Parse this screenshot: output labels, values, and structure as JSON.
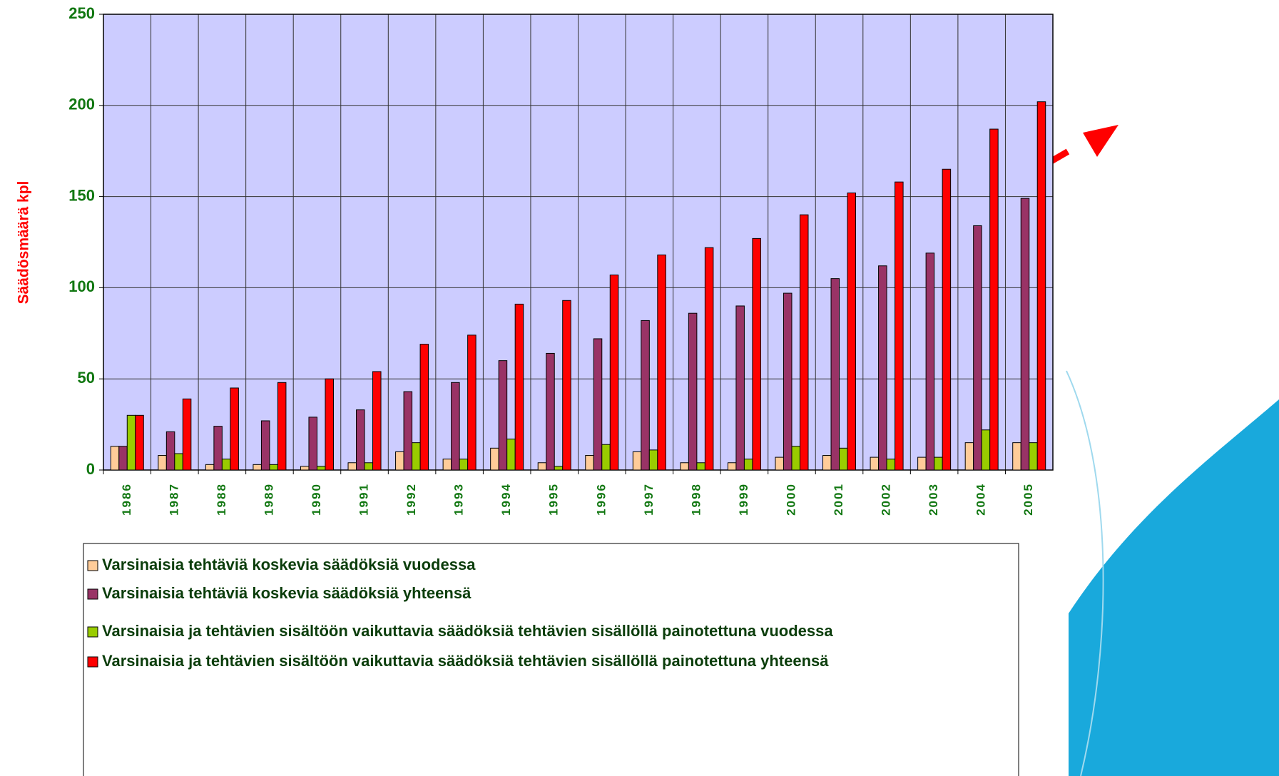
{
  "chart_data": {
    "type": "bar",
    "y_label": "Säädösmäärä kpl",
    "categories": [
      "1986",
      "1987",
      "1988",
      "1989",
      "1990",
      "1991",
      "1992",
      "1993",
      "1994",
      "1995",
      "1996",
      "1997",
      "1998",
      "1999",
      "2000",
      "2001",
      "2002",
      "2003",
      "2004",
      "2005"
    ],
    "series": [
      {
        "name": "Varsinaisia tehtäviä koskevia säädöksiä vuodessa",
        "color": "#ffcc99",
        "values": [
          13,
          8,
          3,
          3,
          2,
          4,
          10,
          6,
          12,
          4,
          8,
          10,
          4,
          4,
          7,
          8,
          7,
          7,
          15,
          15
        ]
      },
      {
        "name": "Varsinaisia tehtäviä koskevia säädöksiä yhteensä",
        "color": "#993366",
        "values": [
          13,
          21,
          24,
          27,
          29,
          33,
          43,
          48,
          60,
          64,
          72,
          82,
          86,
          90,
          97,
          105,
          112,
          119,
          134,
          149
        ]
      },
      {
        "name": "Varsinaisia ja tehtävien sisältöön vaikuttavia säädöksiä tehtävien sisällöllä painotettuna vuodessa",
        "color": "#99cc00",
        "values": [
          30,
          9,
          6,
          3,
          2,
          4,
          15,
          6,
          17,
          2,
          14,
          11,
          4,
          6,
          13,
          12,
          6,
          7,
          22,
          15
        ]
      },
      {
        "name": "Varsinaisia ja tehtävien sisältöön vaikuttavia säädöksiä tehtävien sisällöllä painotettuna yhteensä",
        "color": "#ff0000",
        "values": [
          30,
          39,
          45,
          48,
          50,
          54,
          69,
          74,
          91,
          93,
          107,
          118,
          122,
          127,
          140,
          152,
          158,
          165,
          187,
          202
        ]
      }
    ],
    "ylim": [
      0,
      250
    ],
    "yticks": [
      0,
      50,
      100,
      150,
      200,
      250
    ],
    "grid": true,
    "plot_background": "#ccccff"
  }
}
